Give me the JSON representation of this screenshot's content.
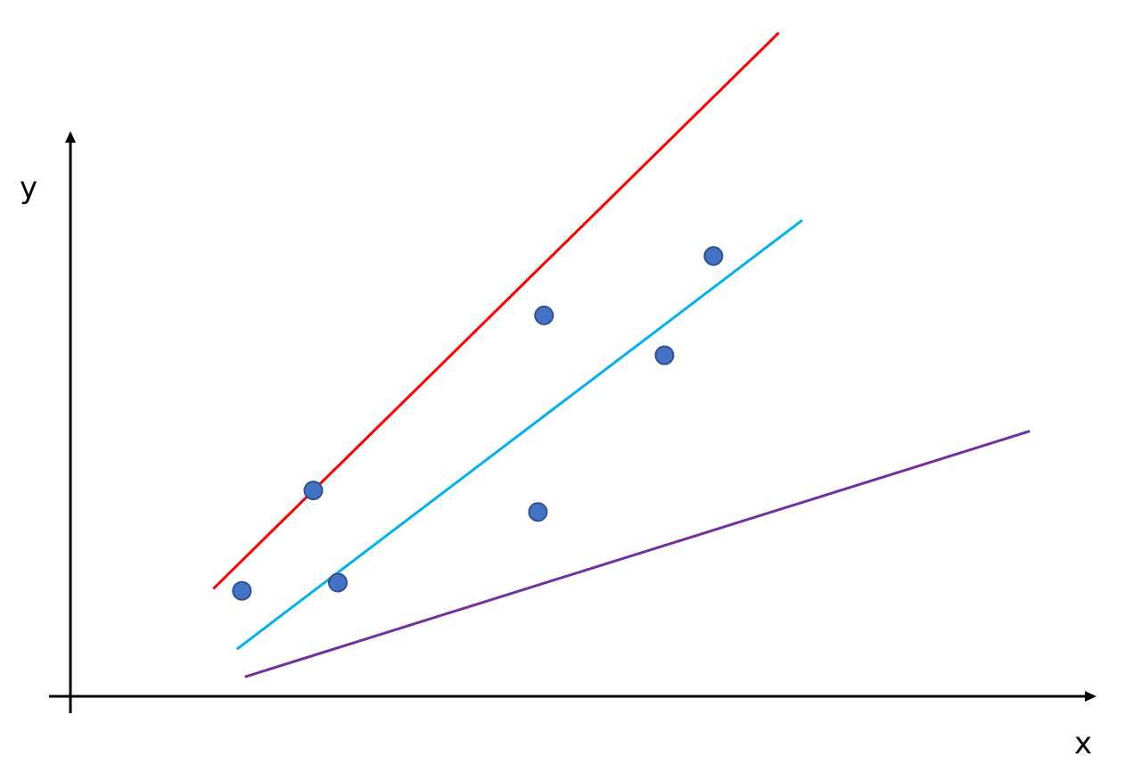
{
  "chart_data": {
    "type": "scatter",
    "title": "",
    "xlabel": "x",
    "ylabel": "y",
    "xlim": [
      0,
      10
    ],
    "ylim": [
      0,
      6.8
    ],
    "grid": false,
    "points": {
      "color": "#4472c4",
      "x": [
        1.68,
        2.38,
        2.62,
        4.58,
        4.64,
        5.82,
        6.3
      ],
      "y": [
        1.03,
        2.01,
        1.11,
        1.8,
        3.72,
        3.33,
        4.3
      ]
    },
    "lines": [
      {
        "color": "#ff0000",
        "x": [
          1.4,
          6.94
        ],
        "y": [
          1.05,
          6.48
        ]
      },
      {
        "color": "#00b0f0",
        "x": [
          1.63,
          7.17
        ],
        "y": [
          0.46,
          4.65
        ]
      },
      {
        "color": "#7030a0",
        "x": [
          1.71,
          9.4
        ],
        "y": [
          0.19,
          2.59
        ]
      }
    ]
  }
}
